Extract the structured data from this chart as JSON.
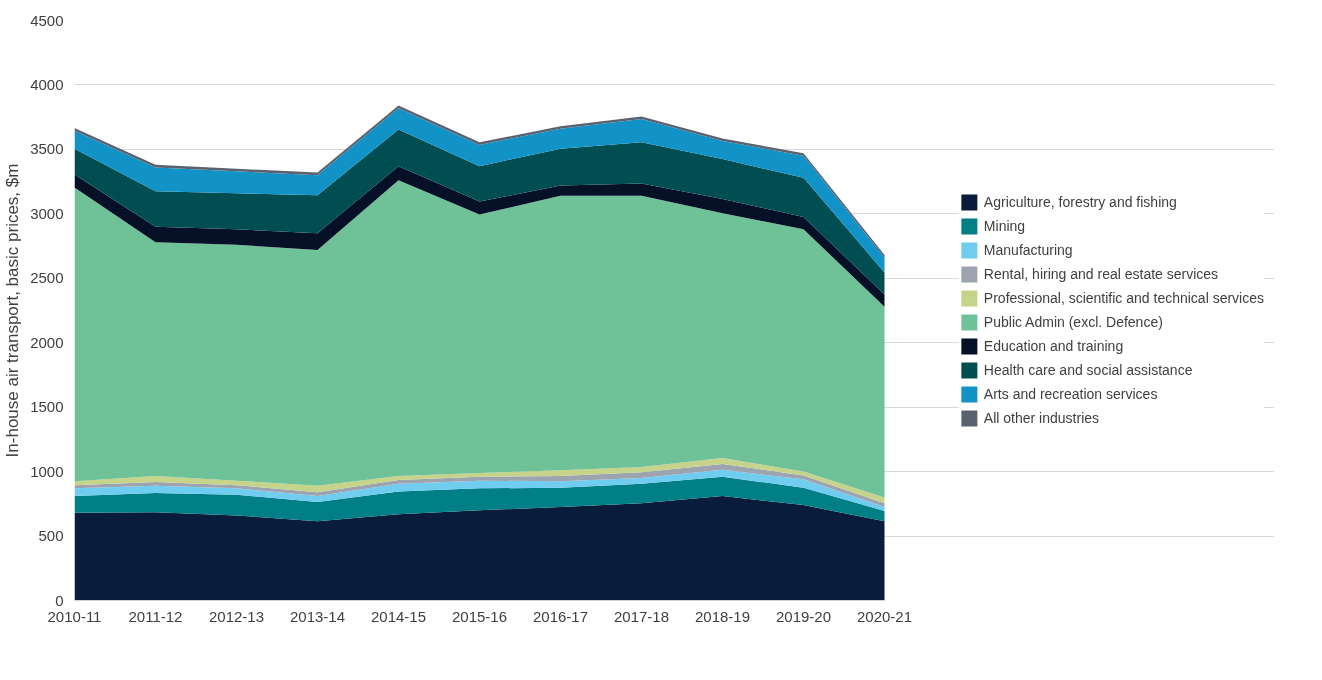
{
  "chart_data": {
    "type": "area",
    "stacked": true,
    "ylabel": "In-house air transport, basic prices, $m",
    "categories": [
      "2010-11",
      "2011-12",
      "2012-13",
      "2013-14",
      "2014-15",
      "2015-16",
      "2016-17",
      "2017-18",
      "2018-19",
      "2019-20",
      "2020-21"
    ],
    "ylim": [
      0,
      4500
    ],
    "yticks": [
      0,
      500,
      1000,
      1500,
      2000,
      2500,
      3000,
      3500,
      4000,
      4500
    ],
    "grid": "y",
    "legend": "right",
    "series": [
      {
        "name": "Agriculture, forestry and fishing",
        "color": "#0a1c3c",
        "values": [
          680,
          685,
          660,
          615,
          670,
          700,
          725,
          755,
          810,
          740,
          615
        ]
      },
      {
        "name": "Mining",
        "color": "#007f86",
        "values": [
          130,
          150,
          160,
          150,
          175,
          170,
          150,
          150,
          150,
          135,
          80
        ]
      },
      {
        "name": "Manufacturing",
        "color": "#70cdf0",
        "values": [
          60,
          55,
          50,
          45,
          60,
          60,
          50,
          45,
          55,
          65,
          30
        ]
      },
      {
        "name": "Rental, hiring and real estate services",
        "color": "#9ea3b0",
        "values": [
          25,
          30,
          25,
          30,
          30,
          30,
          40,
          45,
          45,
          30,
          30
        ]
      },
      {
        "name": "Professional, scientific and technical services",
        "color": "#c5d38b",
        "values": [
          30,
          45,
          35,
          50,
          30,
          30,
          45,
          40,
          45,
          30,
          45
        ]
      },
      {
        "name": "Public Admin (excl. Defence)",
        "color": "#6fc198",
        "values": [
          2280,
          1815,
          1830,
          1830,
          2295,
          2005,
          2130,
          2105,
          1900,
          1880,
          1480
        ]
      },
      {
        "name": "Education and training",
        "color": "#061128",
        "values": [
          100,
          120,
          120,
          130,
          110,
          100,
          80,
          95,
          110,
          95,
          95
        ]
      },
      {
        "name": "Health care and social assistance",
        "color": "#004e52",
        "values": [
          200,
          275,
          280,
          295,
          285,
          275,
          285,
          320,
          310,
          305,
          170
        ]
      },
      {
        "name": "Arts and recreation services",
        "color": "#1193c8",
        "values": [
          140,
          185,
          170,
          155,
          165,
          165,
          155,
          180,
          140,
          170,
          115
        ]
      },
      {
        "name": "All other industries",
        "color": "#5a6270",
        "values": [
          20,
          20,
          20,
          20,
          20,
          20,
          20,
          20,
          20,
          20,
          20
        ]
      }
    ]
  }
}
